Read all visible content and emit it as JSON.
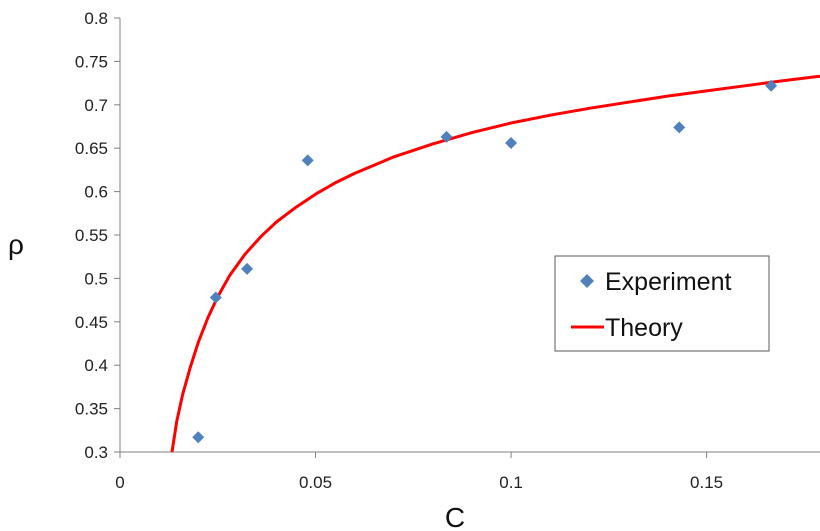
{
  "chart_data": {
    "type": "scatter",
    "title": "",
    "xlabel": "C",
    "ylabel": "ρ",
    "xlim": [
      0,
      0.179
    ],
    "ylim": [
      0.3,
      0.8
    ],
    "x_ticks": [
      "0",
      "0.05",
      "0.1",
      "0.15"
    ],
    "x_tick_values": [
      0,
      0.05,
      0.1,
      0.15
    ],
    "y_ticks": [
      "0.3",
      "0.35",
      "0.4",
      "0.45",
      "0.5",
      "0.55",
      "0.6",
      "0.65",
      "0.7",
      "0.75",
      "0.8"
    ],
    "y_tick_values": [
      0.3,
      0.35,
      0.4,
      0.45,
      0.5,
      0.55,
      0.6,
      0.65,
      0.7,
      0.75,
      0.8
    ],
    "grid": false,
    "legend_position": "right",
    "series": [
      {
        "name": "Experiment",
        "kind": "markers",
        "marker": "diamond",
        "color": "#4f81bd",
        "x": [
          0.02,
          0.0245,
          0.0325,
          0.048,
          0.0835,
          0.1,
          0.143,
          0.1665
        ],
        "y": [
          0.317,
          0.478,
          0.511,
          0.636,
          0.663,
          0.656,
          0.674,
          0.722
        ]
      },
      {
        "name": "Theory",
        "kind": "line",
        "color": "#ff0000",
        "x": [
          0.0133,
          0.0145,
          0.016,
          0.018,
          0.02,
          0.0225,
          0.025,
          0.028,
          0.032,
          0.036,
          0.04,
          0.045,
          0.05,
          0.055,
          0.06,
          0.07,
          0.08,
          0.09,
          0.1,
          0.11,
          0.12,
          0.13,
          0.14,
          0.15,
          0.16,
          0.17,
          0.179
        ],
        "y": [
          0.3,
          0.335,
          0.366,
          0.398,
          0.426,
          0.455,
          0.479,
          0.503,
          0.528,
          0.548,
          0.565,
          0.582,
          0.597,
          0.61,
          0.621,
          0.64,
          0.655,
          0.668,
          0.679,
          0.688,
          0.696,
          0.703,
          0.71,
          0.716,
          0.722,
          0.728,
          0.733
        ]
      }
    ]
  }
}
